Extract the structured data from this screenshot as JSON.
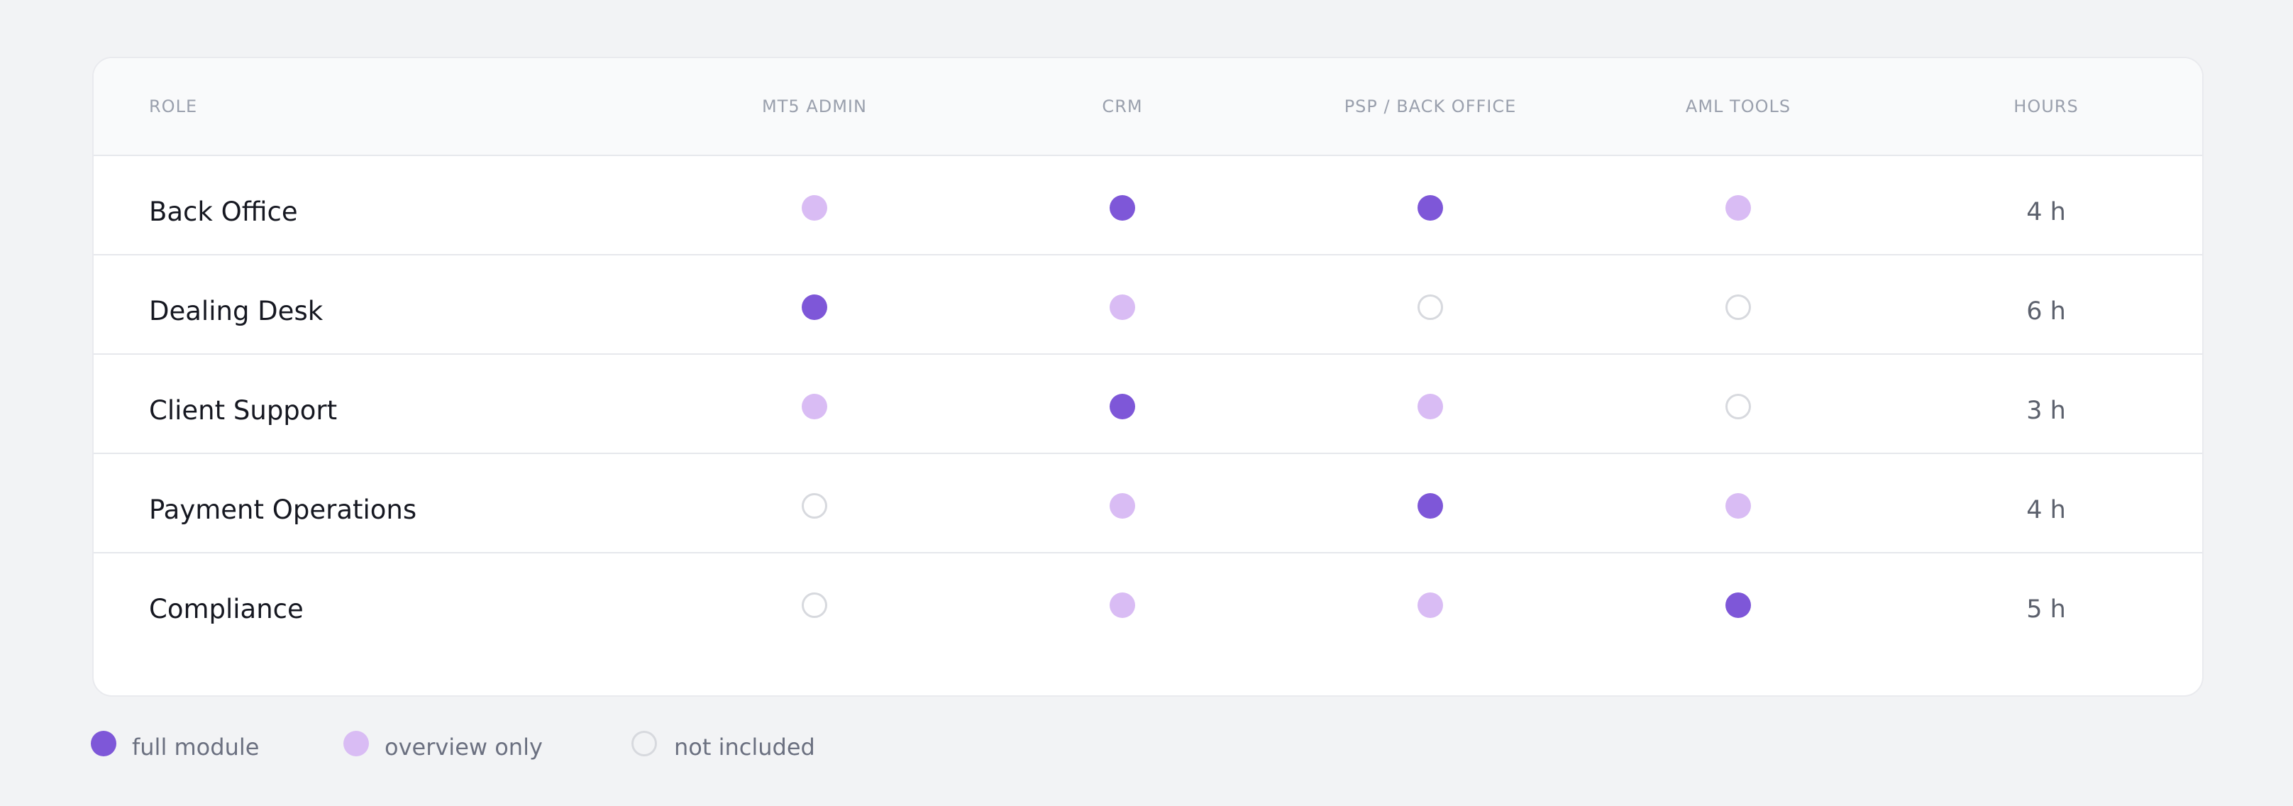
{
  "colors": {
    "full": "#7e57d8",
    "overview": "#d9bcf4",
    "none_border": "#d7d9de",
    "background": "#f2f3f5"
  },
  "table": {
    "headers": [
      "ROLE",
      "MT5 ADMIN",
      "CRM",
      "PSP / BACK OFFICE",
      "AML TOOLS",
      "HOURS"
    ],
    "rows": [
      {
        "role": "Back Office",
        "modules": [
          "overview",
          "full",
          "full",
          "overview"
        ],
        "hours": "4 h"
      },
      {
        "role": "Dealing Desk",
        "modules": [
          "full",
          "overview",
          "none",
          "none"
        ],
        "hours": "6 h"
      },
      {
        "role": "Client Support",
        "modules": [
          "overview",
          "full",
          "overview",
          "none"
        ],
        "hours": "3 h"
      },
      {
        "role": "Payment Operations",
        "modules": [
          "none",
          "overview",
          "full",
          "overview"
        ],
        "hours": "4 h"
      },
      {
        "role": "Compliance",
        "modules": [
          "none",
          "overview",
          "overview",
          "full"
        ],
        "hours": "5 h"
      }
    ]
  },
  "legend": [
    {
      "type": "full",
      "label": "full module"
    },
    {
      "type": "overview",
      "label": "overview only"
    },
    {
      "type": "none",
      "label": "not included"
    }
  ]
}
